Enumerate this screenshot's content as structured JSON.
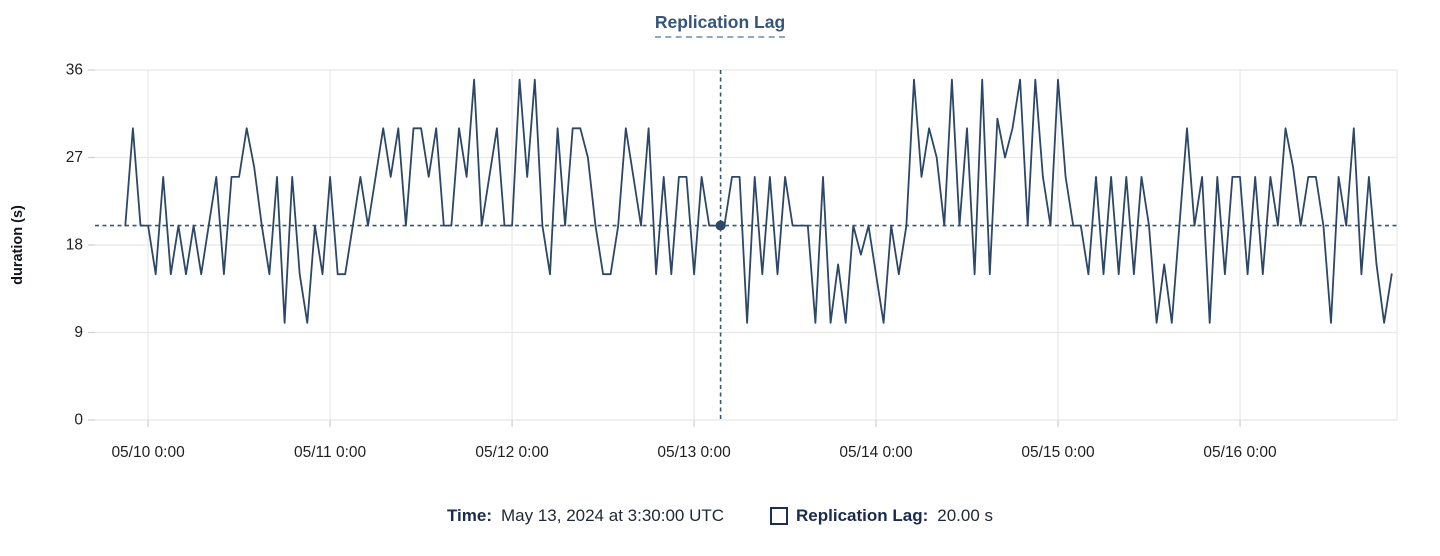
{
  "title": "Replication Lag",
  "tooltip": {
    "time_label": "Time:",
    "time_value": "May 13, 2024 at 3:30:00 UTC",
    "series_label": "Replication Lag:",
    "series_value": "20.00 s"
  },
  "colors": {
    "line": "#2c4767",
    "crosshair": "#35596d",
    "crosshair_dot": "#2c4767",
    "grid": "#e8e8e8",
    "tick": "#cfcfcf",
    "axis_text": "#1f1f1f",
    "title_text": "#35567a",
    "legend_bold_text": "#1b2b4d"
  },
  "chart_data": {
    "type": "line",
    "title": "Replication Lag",
    "xlabel": "",
    "ylabel": "duration (s)",
    "ylim": [
      0,
      36
    ],
    "yticks": [
      0,
      9,
      18,
      27,
      36
    ],
    "x_domain_hours": [
      -7,
      164.7
    ],
    "xticks": [
      {
        "hour": 0,
        "label": "05/10 0:00"
      },
      {
        "hour": 24,
        "label": "05/11 0:00"
      },
      {
        "hour": 48,
        "label": "05/12 0:00"
      },
      {
        "hour": 72,
        "label": "05/13 0:00"
      },
      {
        "hour": 96,
        "label": "05/14 0:00"
      },
      {
        "hour": 120,
        "label": "05/15 0:00"
      },
      {
        "hour": 144,
        "label": "05/16 0:00"
      }
    ],
    "grid": true,
    "legend_position": "bottom",
    "series": [
      {
        "name": "Replication Lag",
        "unit": "s",
        "start_hour": -3,
        "step_hours": 1,
        "values": [
          20,
          30,
          20,
          20,
          15,
          25,
          15,
          20,
          15,
          20,
          15,
          20,
          25,
          15,
          25,
          25,
          30,
          26,
          20,
          15,
          25,
          10,
          25,
          15,
          10,
          20,
          15,
          25,
          15,
          15,
          20,
          25,
          20,
          25,
          30,
          25,
          30,
          20,
          30,
          30,
          25,
          30,
          20,
          20,
          30,
          25,
          35,
          20,
          25,
          30,
          20,
          20,
          35,
          25,
          35,
          20,
          15,
          30,
          20,
          30,
          30,
          27,
          20,
          15,
          15,
          20,
          30,
          25,
          20,
          30,
          15,
          25,
          15,
          25,
          25,
          15,
          25,
          20,
          20,
          20,
          25,
          25,
          10,
          25,
          15,
          25,
          15,
          25,
          20,
          20,
          20,
          10,
          25,
          10,
          16,
          10,
          20,
          17,
          20,
          15,
          10,
          20,
          15,
          20,
          35,
          25,
          30,
          27,
          20,
          35,
          20,
          30,
          15,
          35,
          15,
          31,
          27,
          30,
          35,
          20,
          35,
          25,
          20,
          35,
          25,
          20,
          20,
          15,
          25,
          15,
          25,
          15,
          25,
          15,
          25,
          20,
          10,
          16,
          10,
          20,
          30,
          20,
          25,
          10,
          25,
          15,
          25,
          25,
          15,
          25,
          15,
          25,
          20,
          30,
          26,
          20,
          25,
          25,
          20,
          10,
          25,
          20,
          30,
          15,
          25,
          16,
          10,
          15
        ]
      }
    ],
    "crosshair": {
      "hour": 75.5,
      "value": 20
    }
  }
}
